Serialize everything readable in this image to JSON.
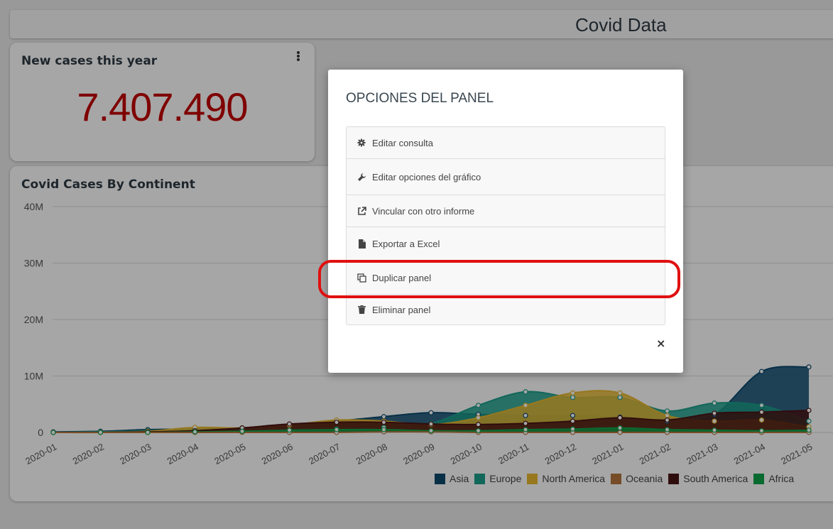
{
  "header": {
    "title": "Covid Data"
  },
  "kpi": {
    "title": "New cases this year",
    "value": "7.407.490",
    "value_color": "#c40000"
  },
  "chart_card": {
    "title": "Covid Cases By Continent"
  },
  "chart_data": {
    "type": "area",
    "title": "Covid Cases By Continent",
    "x": [
      "2020-01",
      "2020-02",
      "2020-03",
      "2020-04",
      "2020-05",
      "2020-06",
      "2020-07",
      "2020-08",
      "2020-09",
      "2020-10",
      "2020-11",
      "2020-12",
      "2021-01",
      "2021-02",
      "2021-03",
      "2021-04",
      "2021-05"
    ],
    "y_ticks": [
      "40M",
      "30M",
      "20M",
      "10M",
      "0"
    ],
    "ylim": [
      0,
      40000000
    ],
    "grid": true,
    "legend_position": "bottom",
    "series": [
      {
        "name": "Asia",
        "color": "#0c4a6e",
        "values": [
          0.1,
          0.2,
          0.5,
          0.6,
          0.8,
          1.4,
          2.0,
          2.8,
          3.5,
          3.2,
          3.0,
          3.0,
          2.7,
          2.0,
          3.2,
          10.8,
          11.6
        ]
      },
      {
        "name": "Europe",
        "color": "#1b9e8a",
        "values": [
          0,
          0.1,
          0.3,
          0.6,
          0.5,
          0.4,
          0.6,
          0.9,
          1.6,
          4.8,
          7.2,
          6.2,
          6.2,
          3.8,
          5.2,
          4.8,
          2.0
        ]
      },
      {
        "name": "North America",
        "color": "#e8b931",
        "values": [
          0,
          0,
          0.2,
          0.9,
          0.8,
          1.3,
          2.2,
          2.0,
          1.4,
          2.6,
          4.8,
          7.0,
          7.0,
          3.0,
          2.0,
          2.2,
          1.0
        ]
      },
      {
        "name": "Oceania",
        "color": "#b5773d",
        "values": [
          0,
          0,
          0,
          0,
          0,
          0,
          0,
          0.1,
          0.1,
          0,
          0,
          0,
          0,
          0,
          0,
          0,
          0
        ]
      },
      {
        "name": "South America",
        "color": "#4a1414",
        "values": [
          0,
          0,
          0.1,
          0.3,
          0.8,
          1.5,
          1.8,
          1.8,
          1.5,
          1.4,
          1.6,
          2.0,
          2.6,
          2.2,
          3.4,
          3.6,
          3.9
        ]
      },
      {
        "name": "Africa",
        "color": "#0fa34a",
        "values": [
          0,
          0,
          0,
          0.1,
          0.2,
          0.4,
          0.5,
          0.5,
          0.3,
          0.3,
          0.5,
          0.6,
          0.8,
          0.5,
          0.4,
          0.3,
          0.4
        ]
      }
    ]
  },
  "modal": {
    "title": "OPCIONES DEL PANEL",
    "options": [
      {
        "label": "Editar consulta",
        "icon": "gear-icon"
      },
      {
        "label": "Editar opciones del gráfico",
        "icon": "wrench-icon"
      },
      {
        "label": "Vincular con otro informe",
        "icon": "external-link-icon"
      },
      {
        "label": "Exportar a Excel",
        "icon": "file-icon"
      },
      {
        "label": "Duplicar panel",
        "icon": "copy-icon"
      },
      {
        "label": "Eliminar panel",
        "icon": "trash-icon"
      }
    ],
    "close": "×"
  },
  "highlight_color": "#e01010"
}
